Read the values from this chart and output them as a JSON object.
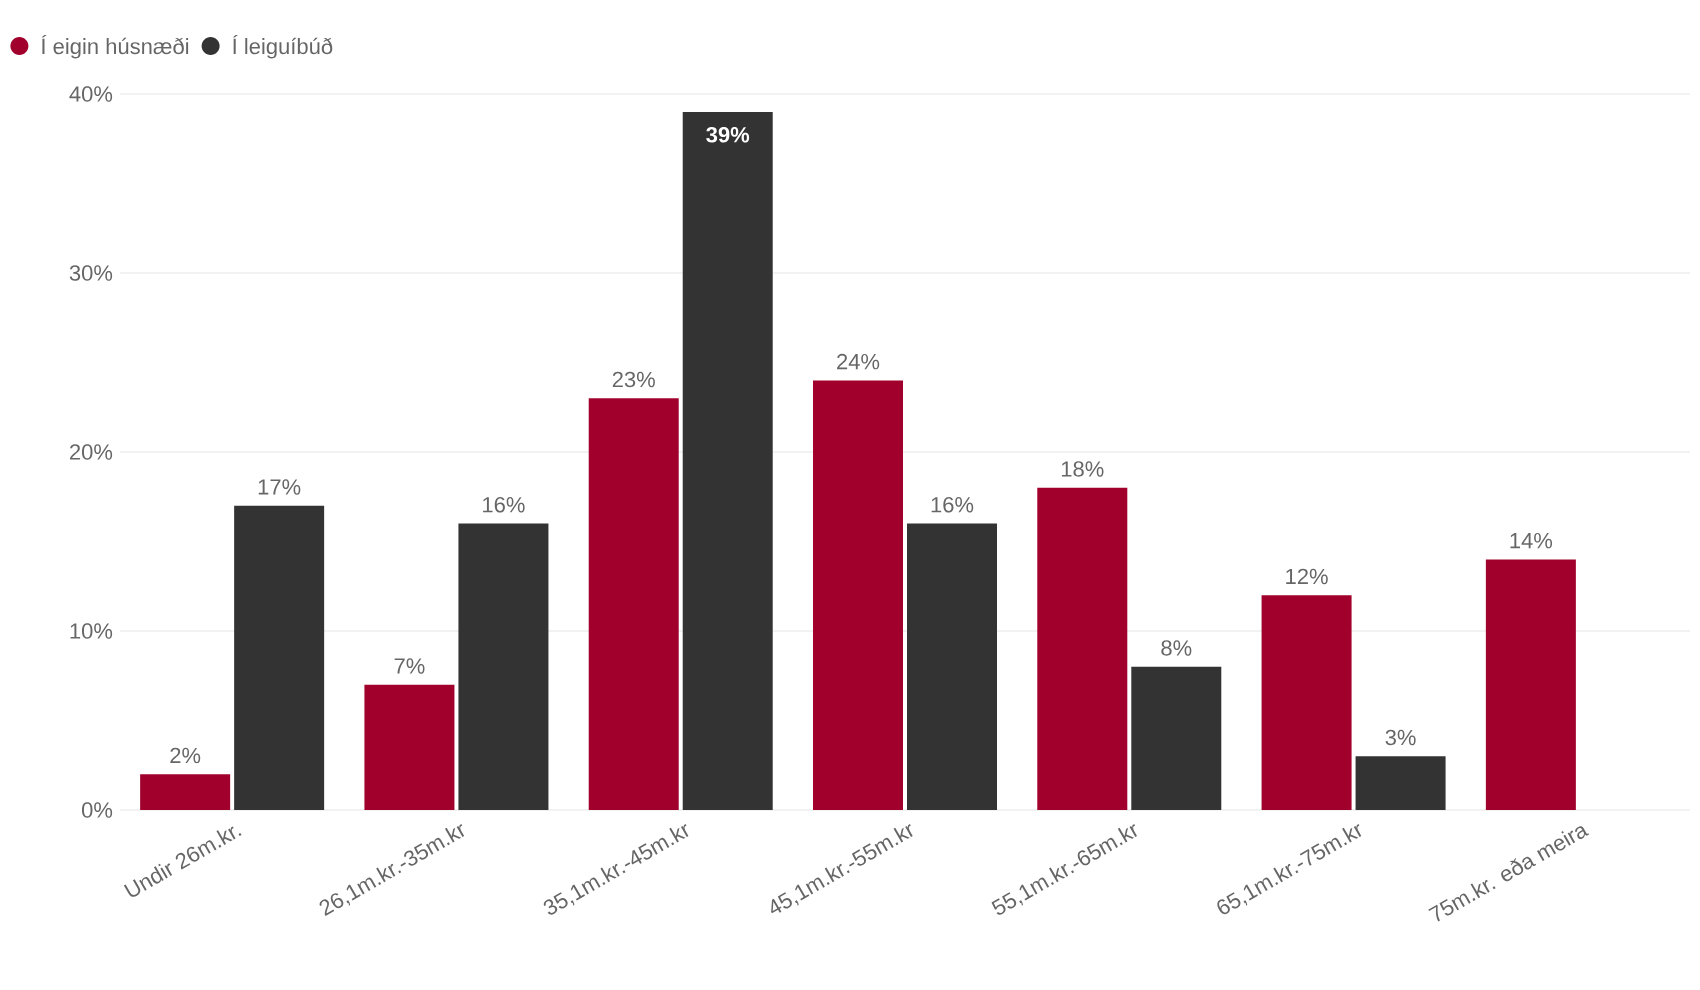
{
  "chart_data": {
    "type": "bar",
    "categories": [
      "Undir 26m.kr.",
      "26,1m.kr.-35m.kr",
      "35,1m.kr.-45m.kr",
      "45,1m.kr.-55m.kr",
      "55,1m.kr.-65m.kr",
      "65,1m.kr.-75m.kr",
      "75m.kr. eða meira"
    ],
    "series": [
      {
        "name": "Í eigin húsnæði",
        "color": "#a0002b",
        "values": [
          2,
          7,
          23,
          24,
          18,
          12,
          14
        ],
        "value_labels": [
          "2%",
          "7%",
          "23%",
          "24%",
          "18%",
          "12%",
          "14%"
        ]
      },
      {
        "name": "Í leiguíbúð",
        "color": "#333333",
        "values": [
          17,
          16,
          39,
          16,
          8,
          3,
          null
        ],
        "value_labels": [
          "17%",
          "16%",
          "39%",
          "16%",
          "8%",
          "3%",
          null
        ]
      }
    ],
    "ylim": [
      0,
      40
    ],
    "yticks": [
      {
        "value": 0,
        "label": "0%"
      },
      {
        "value": 10,
        "label": "10%"
      },
      {
        "value": 20,
        "label": "20%"
      },
      {
        "value": 30,
        "label": "30%"
      },
      {
        "value": 40,
        "label": "40%"
      }
    ],
    "grid": "y",
    "legend": "top left"
  }
}
